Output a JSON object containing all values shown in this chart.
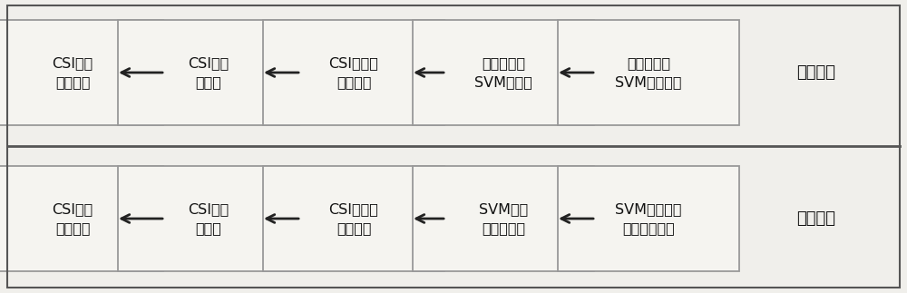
{
  "background_color": "#f0efeb",
  "box_fill_color": "#f5f4f0",
  "box_edge_color": "#999999",
  "arrow_color": "#222222",
  "text_color": "#111111",
  "divider_color": "#555555",
  "top_row": {
    "boxes": [
      "CSI训练\n数据采集",
      "CSI数据\n预处理",
      "CSI数据特\n征值提取",
      "训练子区域\nSVM分类器",
      "训练子区域\nSVM回归模型"
    ],
    "label": "训练阶段"
  },
  "bottom_row": {
    "boxes": [
      "CSI实时\n数据采集",
      "CSI数据\n预处理",
      "CSI数据特\n征值提取",
      "SVM分类\n确定子区域",
      "SVM回归确定\n子区域内坐标"
    ],
    "label": "定位阶段"
  },
  "fig_width": 10.0,
  "fig_height": 3.23,
  "font_size": 11.5,
  "label_font_size": 13
}
